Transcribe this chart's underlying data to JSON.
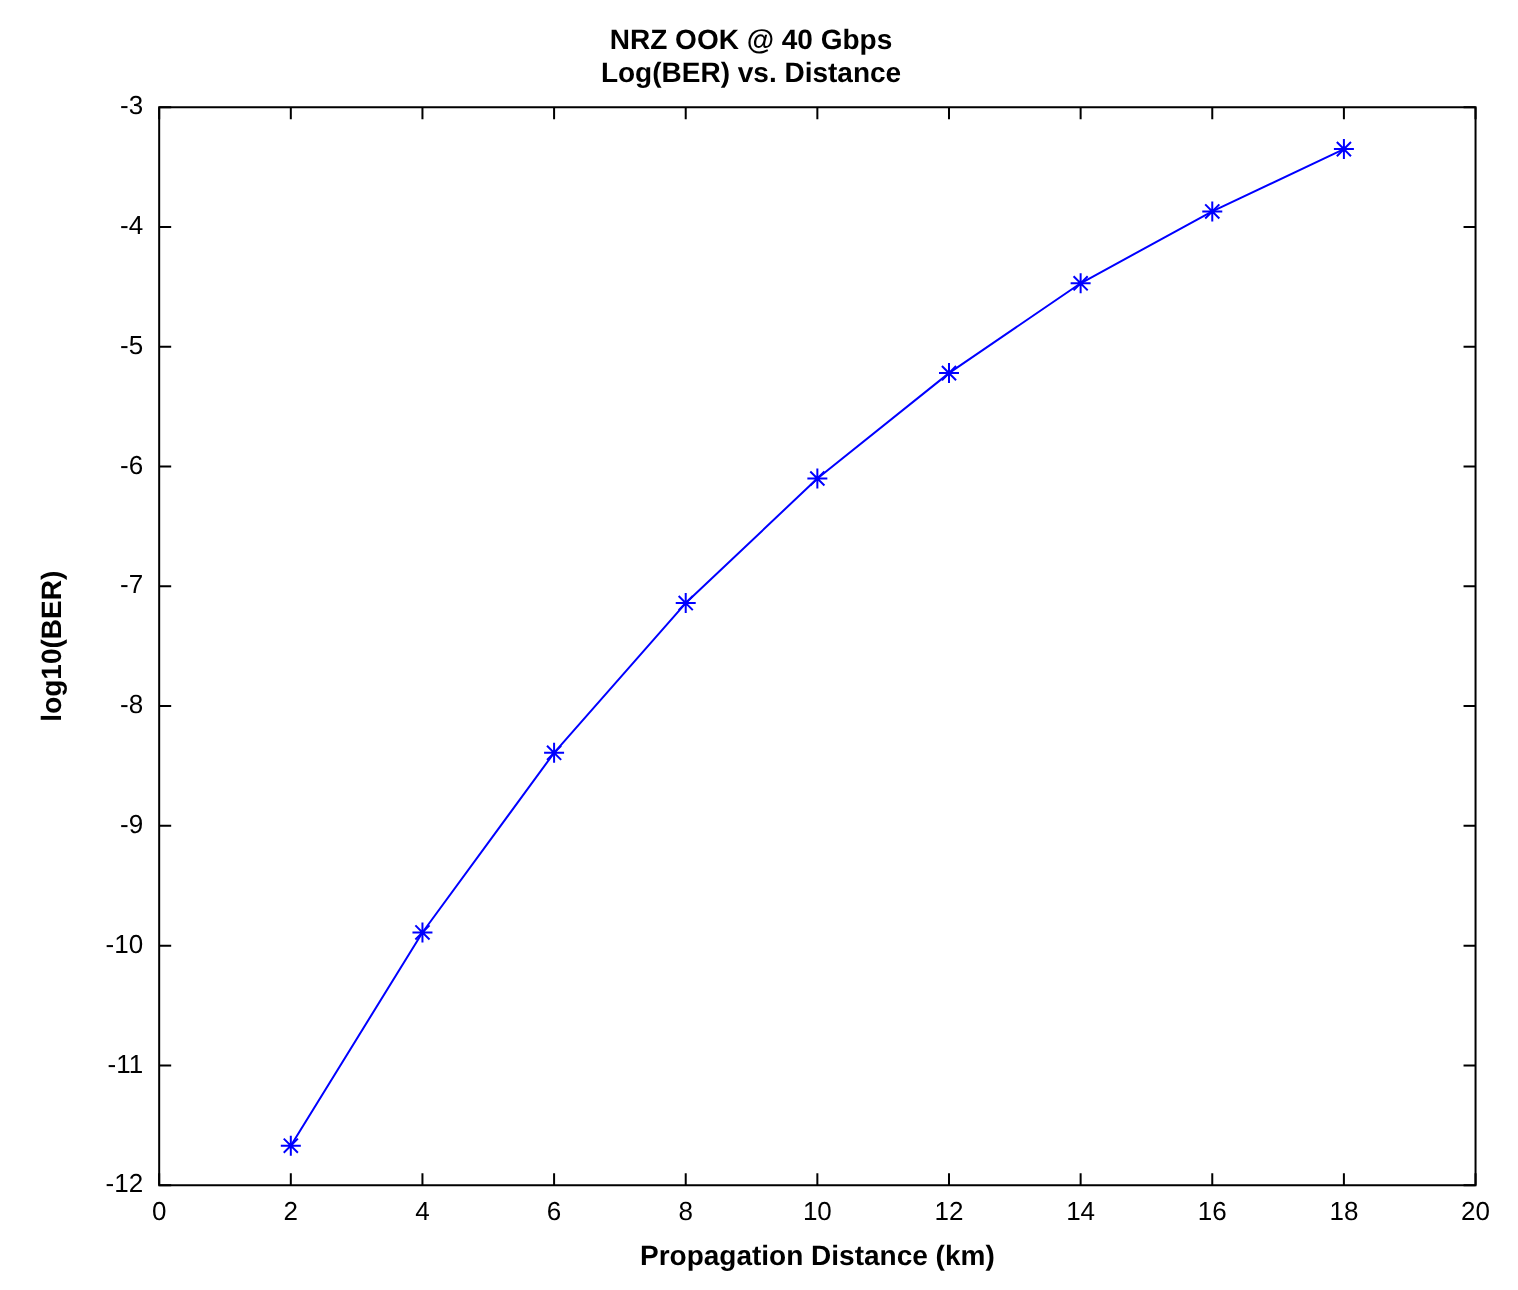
{
  "chart_data": {
    "type": "line",
    "title": "NRZ OOK @ 40 Gbps",
    "subtitle": "Log(BER) vs. Distance",
    "xlabel": "Propagation Distance (km)",
    "ylabel": "log10(BER)",
    "x": [
      2,
      4,
      6,
      8,
      10,
      12,
      14,
      16,
      18
    ],
    "series": [
      {
        "color": "#0000ff",
        "values": [
          -11.67,
          -9.89,
          -8.39,
          -7.14,
          -6.1,
          -5.22,
          -4.47,
          -3.87,
          -3.35
        ]
      }
    ],
    "xlim": [
      0,
      20
    ],
    "xticks": [
      0,
      2,
      4,
      6,
      8,
      10,
      12,
      14,
      16,
      18,
      20
    ],
    "ylim": [
      -12,
      -3
    ],
    "yticks": [
      -12,
      -11,
      -10,
      -9,
      -8,
      -7,
      -6,
      -5,
      -4,
      -3
    ],
    "grid": false,
    "legend": false,
    "marker": "cross",
    "line_style": "solid"
  }
}
